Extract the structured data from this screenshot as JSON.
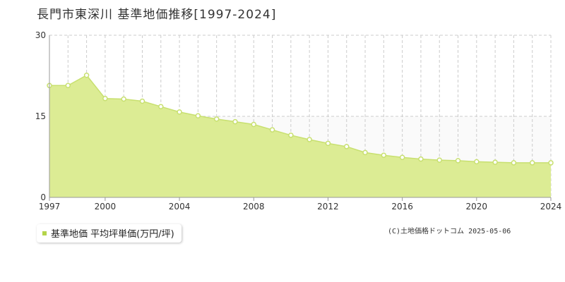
{
  "title": "長門市東深川 基準地価推移[1997-2024]",
  "legend_label": "基準地価 平均坪単価(万円/坪)",
  "copyright": "(C)土地価格ドットコム 2025-05-06",
  "colors": {
    "fill": "#dcec94",
    "line": "#c8e070",
    "point_fill": "#ffffff",
    "point_stroke": "#c8e070",
    "upper_band": "#fafafa",
    "grid": "#cccccc",
    "axis": "#999999"
  },
  "chart_data": {
    "type": "area",
    "title": "長門市東深川 基準地価推移[1997-2024]",
    "xlim": [
      1997,
      2024
    ],
    "ylim": [
      0,
      30
    ],
    "yticks": [
      0,
      15,
      30
    ],
    "xticks": [
      1997,
      2000,
      2004,
      2008,
      2012,
      2016,
      2020,
      2024
    ],
    "grid": true,
    "series": [
      {
        "name": "基準地価 平均坪単価(万円/坪)",
        "x": [
          1997,
          1998,
          1999,
          2000,
          2001,
          2002,
          2003,
          2004,
          2005,
          2006,
          2007,
          2008,
          2009,
          2010,
          2011,
          2012,
          2013,
          2014,
          2015,
          2016,
          2017,
          2018,
          2019,
          2020,
          2021,
          2022,
          2023,
          2024
        ],
        "values": [
          20.7,
          20.7,
          22.6,
          18.3,
          18.2,
          17.8,
          16.8,
          15.8,
          15.1,
          14.5,
          14.0,
          13.5,
          12.5,
          11.5,
          10.7,
          10.0,
          9.4,
          8.3,
          7.8,
          7.4,
          7.1,
          6.9,
          6.8,
          6.6,
          6.5,
          6.4,
          6.4,
          6.4
        ]
      }
    ]
  }
}
